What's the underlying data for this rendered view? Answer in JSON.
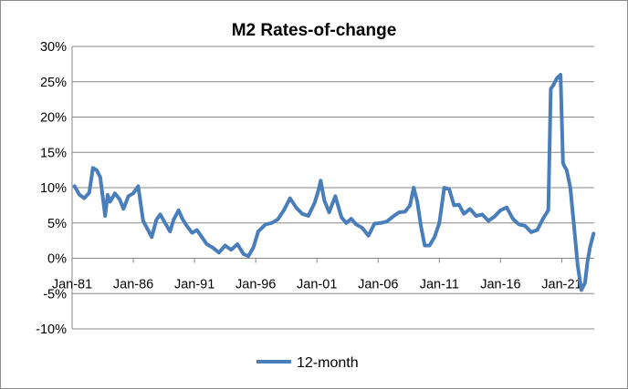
{
  "chart_data": {
    "type": "line",
    "title": "M2 Rates-of-change",
    "xlabel": "",
    "ylabel": "",
    "x_ticks": [
      "Jan-81",
      "Jan-86",
      "Jan-91",
      "Jan-96",
      "Jan-01",
      "Jan-06",
      "Jan-11",
      "Jan-16",
      "Jan-21"
    ],
    "y_ticks": [
      "30%",
      "25%",
      "20%",
      "15%",
      "10%",
      "5%",
      "0%",
      "-5%",
      "-10%"
    ],
    "xlim": [
      "Jan-81",
      "Aug-23"
    ],
    "ylim": [
      -10,
      30
    ],
    "y_unit": "%",
    "grid": "horizontal",
    "legend_position": "bottom",
    "color": "#4a7ebb",
    "series": [
      {
        "name": "12-month",
        "x": [
          1981.2,
          1981.6,
          1982.0,
          1982.4,
          1982.7,
          1983.0,
          1983.3,
          1983.7,
          1983.9,
          1984.1,
          1984.5,
          1984.9,
          1985.2,
          1985.6,
          1986.0,
          1986.4,
          1986.8,
          1987.2,
          1987.5,
          1987.9,
          1988.2,
          1988.6,
          1989.0,
          1989.3,
          1989.7,
          1990.0,
          1990.4,
          1990.8,
          1991.2,
          1991.6,
          1992.0,
          1992.5,
          1993.0,
          1993.5,
          1994.0,
          1994.5,
          1995.0,
          1995.4,
          1995.8,
          1996.2,
          1996.8,
          1997.3,
          1997.8,
          1998.3,
          1998.8,
          1999.3,
          1999.8,
          2000.3,
          2000.8,
          2001.1,
          2001.3,
          2001.6,
          2002.0,
          2002.5,
          2003.0,
          2003.4,
          2003.8,
          2004.2,
          2004.7,
          2005.2,
          2005.7,
          2006.2,
          2006.7,
          2007.2,
          2007.7,
          2008.2,
          2008.6,
          2008.9,
          2009.2,
          2009.5,
          2009.8,
          2010.2,
          2010.6,
          2011.0,
          2011.4,
          2011.8,
          2012.2,
          2012.6,
          2013.0,
          2013.5,
          2014.0,
          2014.5,
          2015.0,
          2015.5,
          2016.0,
          2016.5,
          2017.0,
          2017.5,
          2018.0,
          2018.5,
          2019.0,
          2019.5,
          2019.9,
          2020.1,
          2020.3,
          2020.6,
          2020.9,
          2021.1,
          2021.2,
          2021.4,
          2021.7,
          2022.0,
          2022.3,
          2022.6,
          2022.9,
          2023.1,
          2023.3,
          2023.6
        ],
        "values": [
          10.2,
          9.0,
          8.5,
          9.3,
          12.8,
          12.5,
          11.5,
          6.0,
          9.0,
          8.0,
          9.2,
          8.3,
          7.0,
          8.8,
          9.2,
          10.2,
          5.3,
          4.0,
          3.0,
          5.5,
          6.2,
          5.0,
          3.8,
          5.5,
          6.8,
          5.6,
          4.5,
          3.6,
          4.0,
          3.0,
          2.0,
          1.5,
          0.8,
          1.8,
          1.2,
          2.0,
          0.6,
          0.3,
          1.5,
          3.8,
          4.8,
          5.0,
          5.5,
          6.8,
          8.5,
          7.2,
          6.3,
          6.0,
          7.8,
          9.5,
          11.0,
          8.2,
          6.5,
          8.8,
          5.8,
          5.0,
          5.6,
          4.8,
          4.3,
          3.2,
          4.9,
          5.0,
          5.2,
          5.9,
          6.5,
          6.6,
          7.5,
          10.0,
          8.0,
          4.5,
          1.8,
          1.8,
          3.0,
          5.0,
          10.0,
          9.8,
          7.5,
          7.6,
          6.3,
          7.0,
          6.0,
          6.2,
          5.3,
          5.9,
          6.8,
          7.2,
          5.6,
          4.8,
          4.6,
          3.7,
          4.0,
          5.7,
          6.8,
          24.0,
          24.5,
          25.5,
          26.0,
          13.5,
          13.1,
          12.5,
          10.0,
          4.5,
          -1.0,
          -4.5,
          -3.5,
          -0.5,
          1.5,
          3.5
        ]
      }
    ]
  }
}
